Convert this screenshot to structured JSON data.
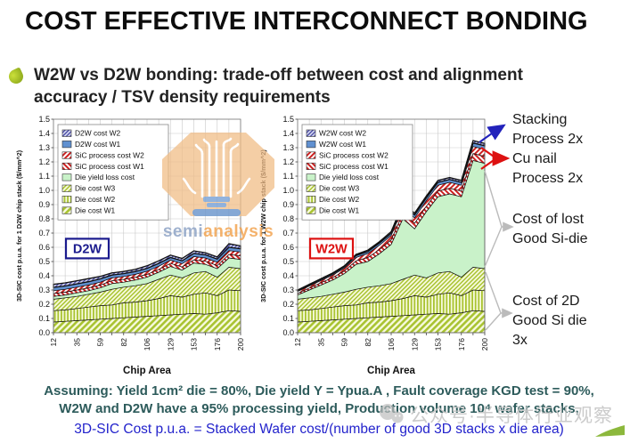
{
  "slide": {
    "title": "COST EFFECTIVE INTERCONNECT BONDING",
    "subtitle": "W2W vs D2W bonding: trade-off between cost and alignment accuracy / TSV density requirements"
  },
  "annotations": [
    {
      "lines": [
        "Stacking",
        "Process 2x"
      ],
      "arrow_color": "#2222bb"
    },
    {
      "lines": [
        "Cu nail",
        "Process 2x"
      ],
      "arrow_color": "#dd1111"
    },
    {
      "lines": [
        "Cost of lost",
        "Good Si-die"
      ],
      "arrow_color": "#bbbbbb"
    },
    {
      "lines": [
        "Cost of 2D",
        "Good Si die",
        "3x"
      ],
      "arrow_color": "#bbbbbb"
    }
  ],
  "footnotes": {
    "line1": "Assuming: Yield 1cm² die = 80%, Die yield Y = Ypua.A , Fault coverage KGD test = 90%,",
    "line2": "W2W and D2W have a 95% processing yield, Production volume 10⁴ wafer stacks,",
    "line3": "3D-SIC Cost p.u.a. = Stacked Wafer cost/(number of good 3D stacks x die area)",
    "color_main": "#2d5b5b",
    "color_formula": "#2323cc"
  },
  "watermarks": {
    "logo_semi": "semi",
    "logo_analysis": "analysis",
    "logo_semi_color": "#8ba1c4",
    "logo_analysis_color": "#f2a24c",
    "wechat_text": "公众号·半导体行业观察"
  },
  "colors": {
    "die": "#a9c331",
    "die_bg": "#f7fade",
    "yield_fill": "#c9f2c9",
    "sic": "#cc2121",
    "bond": "#6090d0",
    "bond2": "#3d3d9e",
    "bond2_bg": "#d2d6ef",
    "grid": "#c9c9c9"
  },
  "chart_data": [
    {
      "type": "area",
      "stacked": true,
      "box_label": "D2W",
      "box_color": "#1b1b8e",
      "xlabel": "Chip Area",
      "ylabel": "3D-SIC cost p.u.a. for 1 D2W chip stack ($/mm^2)",
      "ylim": [
        0,
        1.5
      ],
      "ytick_step": 0.1,
      "grid": true,
      "legend_position": "top-left",
      "x": [
        12,
        23,
        35,
        47,
        59,
        70,
        82,
        94,
        106,
        117,
        129,
        141,
        153,
        164,
        176,
        188,
        200
      ],
      "xtick_labels": [
        "12",
        "35",
        "59",
        "82",
        "106",
        "129",
        "153",
        "176",
        "200"
      ],
      "series": [
        {
          "name": "Die cost W1",
          "pattern": "die-diag-wide",
          "cumulative_top": [
            0.075,
            0.08,
            0.085,
            0.09,
            0.095,
            0.1,
            0.105,
            0.11,
            0.115,
            0.12,
            0.125,
            0.13,
            0.135,
            0.13,
            0.14,
            0.155,
            0.15
          ]
        },
        {
          "name": "Die cost W2",
          "pattern": "die-vert",
          "cumulative_top": [
            0.155,
            0.16,
            0.17,
            0.18,
            0.19,
            0.195,
            0.21,
            0.215,
            0.225,
            0.24,
            0.26,
            0.25,
            0.27,
            0.28,
            0.26,
            0.3,
            0.295
          ]
        },
        {
          "name": "Die cost W3",
          "pattern": "die-diag",
          "cumulative_top": [
            0.235,
            0.245,
            0.255,
            0.27,
            0.285,
            0.305,
            0.32,
            0.33,
            0.345,
            0.375,
            0.405,
            0.385,
            0.42,
            0.43,
            0.39,
            0.46,
            0.45
          ]
        },
        {
          "name": "Die yield loss cost",
          "pattern": "yield-solid",
          "cumulative_top": [
            0.255,
            0.265,
            0.28,
            0.295,
            0.315,
            0.345,
            0.355,
            0.37,
            0.39,
            0.425,
            0.465,
            0.44,
            0.49,
            0.48,
            0.45,
            0.525,
            0.515
          ]
        },
        {
          "name": "SiC process cost W1",
          "pattern": "sic-back",
          "cumulative_top": [
            0.275,
            0.285,
            0.3,
            0.315,
            0.335,
            0.365,
            0.375,
            0.39,
            0.41,
            0.445,
            0.487,
            0.462,
            0.512,
            0.502,
            0.472,
            0.55,
            0.54
          ]
        },
        {
          "name": "SiC process cost W2",
          "pattern": "sic-fwd",
          "cumulative_top": [
            0.295,
            0.305,
            0.32,
            0.335,
            0.355,
            0.385,
            0.395,
            0.41,
            0.432,
            0.467,
            0.51,
            0.485,
            0.535,
            0.525,
            0.495,
            0.577,
            0.567
          ]
        },
        {
          "name": "D2W cost W1",
          "pattern": "bond-solid",
          "cumulative_top": [
            0.318,
            0.328,
            0.343,
            0.358,
            0.378,
            0.405,
            0.415,
            0.43,
            0.452,
            0.487,
            0.528,
            0.505,
            0.557,
            0.547,
            0.517,
            0.6,
            0.59
          ]
        },
        {
          "name": "D2W cost W2",
          "pattern": "bond-hatch",
          "cumulative_top": [
            0.34,
            0.35,
            0.365,
            0.38,
            0.395,
            0.42,
            0.43,
            0.445,
            0.47,
            0.505,
            0.545,
            0.522,
            0.575,
            0.562,
            0.532,
            0.625,
            0.61
          ]
        }
      ]
    },
    {
      "type": "area",
      "stacked": true,
      "box_label": "W2W",
      "box_color": "#dd1111",
      "xlabel": "Chip Area",
      "ylabel": "3D-SIC cost p.u.a. for 1 W2W chip stack ($/mm^2)",
      "ylim": [
        0,
        1.5
      ],
      "ytick_step": 0.1,
      "grid": true,
      "legend_position": "top-left",
      "x": [
        12,
        23,
        35,
        47,
        59,
        70,
        82,
        94,
        106,
        117,
        129,
        141,
        153,
        164,
        176,
        188,
        200
      ],
      "xtick_labels": [
        "12",
        "35",
        "59",
        "82",
        "106",
        "129",
        "153",
        "176",
        "200"
      ],
      "series": [
        {
          "name": "Die cost W1",
          "pattern": "die-diag-wide",
          "cumulative_top": [
            0.075,
            0.08,
            0.085,
            0.09,
            0.095,
            0.1,
            0.105,
            0.11,
            0.115,
            0.12,
            0.125,
            0.13,
            0.135,
            0.13,
            0.14,
            0.155,
            0.15
          ]
        },
        {
          "name": "Die cost W2",
          "pattern": "die-vert",
          "cumulative_top": [
            0.155,
            0.16,
            0.17,
            0.18,
            0.19,
            0.195,
            0.21,
            0.215,
            0.225,
            0.24,
            0.26,
            0.25,
            0.27,
            0.28,
            0.26,
            0.3,
            0.295
          ]
        },
        {
          "name": "Die cost W3",
          "pattern": "die-diag",
          "cumulative_top": [
            0.235,
            0.245,
            0.255,
            0.27,
            0.285,
            0.305,
            0.32,
            0.33,
            0.345,
            0.375,
            0.405,
            0.385,
            0.42,
            0.43,
            0.39,
            0.46,
            0.45
          ]
        },
        {
          "name": "Die yield loss cost",
          "pattern": "yield-solid",
          "cumulative_top": [
            0.265,
            0.3,
            0.335,
            0.37,
            0.415,
            0.48,
            0.5,
            0.555,
            0.62,
            0.8,
            0.73,
            0.85,
            0.955,
            0.975,
            0.955,
            1.21,
            1.19
          ]
        },
        {
          "name": "SiC process cost W1",
          "pattern": "sic-back",
          "cumulative_top": [
            0.277,
            0.314,
            0.351,
            0.388,
            0.434,
            0.505,
            0.528,
            0.585,
            0.652,
            0.839,
            0.769,
            0.889,
            0.995,
            1.015,
            0.995,
            1.259,
            1.239
          ]
        },
        {
          "name": "SiC process cost W2",
          "pattern": "sic-fwd",
          "cumulative_top": [
            0.29,
            0.328,
            0.367,
            0.405,
            0.454,
            0.529,
            0.556,
            0.615,
            0.683,
            0.877,
            0.807,
            0.927,
            1.036,
            1.056,
            1.036,
            1.308,
            1.288
          ]
        },
        {
          "name": "W2W cost W1",
          "pattern": "bond-solid",
          "cumulative_top": [
            0.296,
            0.335,
            0.375,
            0.414,
            0.463,
            0.542,
            0.57,
            0.63,
            0.699,
            0.897,
            0.827,
            0.947,
            1.056,
            1.076,
            1.056,
            1.333,
            1.313
          ]
        },
        {
          "name": "W2W cost W2",
          "pattern": "bond-hatch",
          "cumulative_top": [
            0.3,
            0.34,
            0.38,
            0.42,
            0.47,
            0.55,
            0.58,
            0.64,
            0.71,
            0.91,
            0.84,
            0.96,
            1.07,
            1.09,
            1.07,
            1.35,
            1.33
          ]
        }
      ]
    }
  ]
}
